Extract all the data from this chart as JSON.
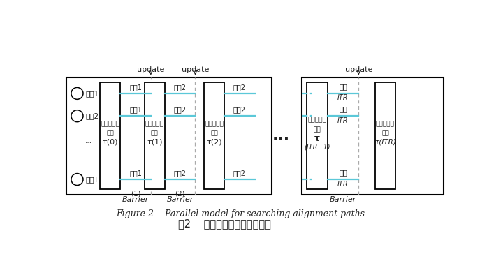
{
  "title_en": "Figure 2    Parallel model for searching alignment paths",
  "title_cn": "图2    搜索比对路径并行化模型",
  "box_color": "#000000",
  "line_color": "#5bc8d8",
  "text_color": "#222222",
  "update_label": "update",
  "barrier_label": "Barrier",
  "dots_label": "...",
  "thread1": "线程1",
  "thread2": "线程2",
  "thread3": "...",
  "thread4": "线程T",
  "xinxi": "信息素矩阵",
  "tau": "τ",
  "jinhua": "进化",
  "ITR": "ITR"
}
